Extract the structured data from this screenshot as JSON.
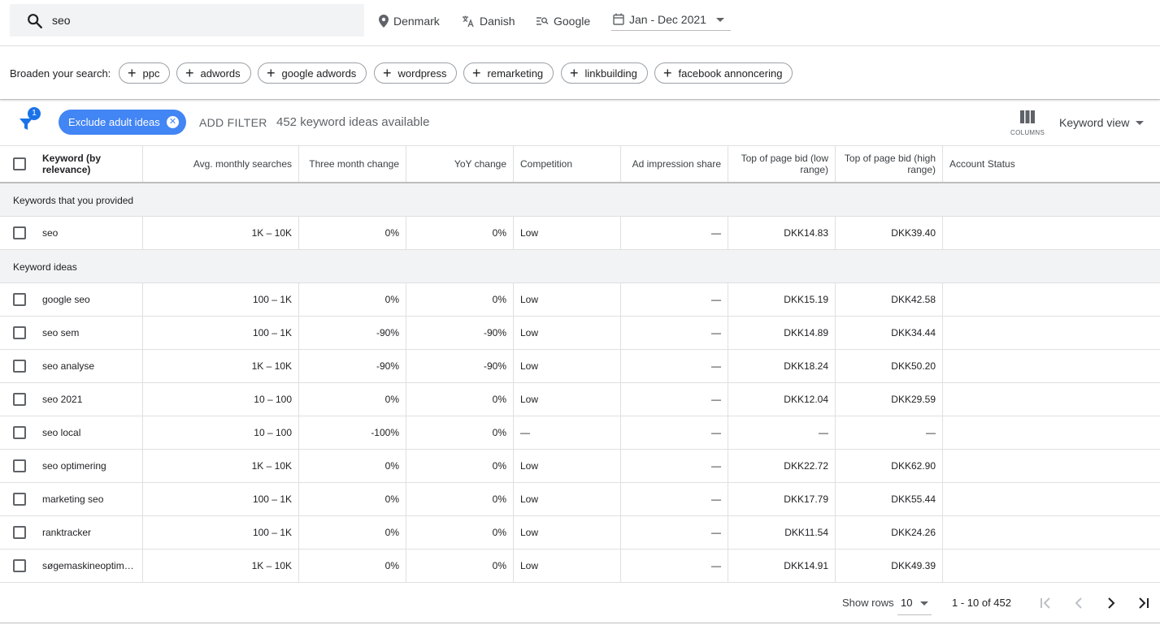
{
  "search": {
    "value": "seo"
  },
  "top_items": {
    "location": "Denmark",
    "language": "Danish",
    "network": "Google",
    "date_range": "Jan - Dec 2021"
  },
  "broaden": {
    "label": "Broaden your search:",
    "chips": [
      "ppc",
      "adwords",
      "google adwords",
      "wordpress",
      "remarketing",
      "linkbuilding",
      "facebook annoncering"
    ]
  },
  "filters": {
    "badge_count": "1",
    "exclude_chip": "Exclude adult ideas",
    "add_filter": "ADD FILTER",
    "available": "452 keyword ideas available",
    "columns_label": "COLUMNS",
    "view": "Keyword view"
  },
  "table": {
    "headers": {
      "keyword": "Keyword (by relevance)",
      "avg": "Avg. monthly searches",
      "three_month": "Three month change",
      "yoy": "YoY change",
      "competition": "Competition",
      "impression": "Ad impression share",
      "bid_low": "Top of page bid (low range)",
      "bid_high": "Top of page bid (high range)",
      "status": "Account Status"
    },
    "group_provided": "Keywords that you provided",
    "group_ideas": "Keyword ideas",
    "provided": [
      {
        "keyword": "seo",
        "avg": "1K – 10K",
        "three_month": "0%",
        "yoy": "0%",
        "competition": "Low",
        "impression": "—",
        "bid_low": "DKK14.83",
        "bid_high": "DKK39.40"
      }
    ],
    "ideas": [
      {
        "keyword": "google seo",
        "avg": "100 – 1K",
        "three_month": "0%",
        "yoy": "0%",
        "competition": "Low",
        "impression": "—",
        "bid_low": "DKK15.19",
        "bid_high": "DKK42.58"
      },
      {
        "keyword": "seo sem",
        "avg": "100 – 1K",
        "three_month": "-90%",
        "yoy": "-90%",
        "competition": "Low",
        "impression": "—",
        "bid_low": "DKK14.89",
        "bid_high": "DKK34.44"
      },
      {
        "keyword": "seo analyse",
        "avg": "1K – 10K",
        "three_month": "-90%",
        "yoy": "-90%",
        "competition": "Low",
        "impression": "—",
        "bid_low": "DKK18.24",
        "bid_high": "DKK50.20"
      },
      {
        "keyword": "seo 2021",
        "avg": "10 – 100",
        "three_month": "0%",
        "yoy": "0%",
        "competition": "Low",
        "impression": "—",
        "bid_low": "DKK12.04",
        "bid_high": "DKK29.59"
      },
      {
        "keyword": "seo local",
        "avg": "10 – 100",
        "three_month": "-100%",
        "yoy": "0%",
        "competition": "—",
        "impression": "—",
        "bid_low": "—",
        "bid_high": "—"
      },
      {
        "keyword": "seo optimering",
        "avg": "1K – 10K",
        "three_month": "0%",
        "yoy": "0%",
        "competition": "Low",
        "impression": "—",
        "bid_low": "DKK22.72",
        "bid_high": "DKK62.90"
      },
      {
        "keyword": "marketing seo",
        "avg": "100 – 1K",
        "three_month": "0%",
        "yoy": "0%",
        "competition": "Low",
        "impression": "—",
        "bid_low": "DKK17.79",
        "bid_high": "DKK55.44"
      },
      {
        "keyword": "ranktracker",
        "avg": "100 – 1K",
        "three_month": "0%",
        "yoy": "0%",
        "competition": "Low",
        "impression": "—",
        "bid_low": "DKK11.54",
        "bid_high": "DKK24.26"
      },
      {
        "keyword": "søgemaskineoptim…",
        "avg": "1K – 10K",
        "three_month": "0%",
        "yoy": "0%",
        "competition": "Low",
        "impression": "—",
        "bid_low": "DKK14.91",
        "bid_high": "DKK49.39"
      }
    ]
  },
  "footer": {
    "show_rows": "Show rows",
    "rows_value": "10",
    "range": "1 - 10 of 452"
  },
  "colors": {
    "accent": "#1a73e8",
    "chip_blue": "#4285f4"
  }
}
